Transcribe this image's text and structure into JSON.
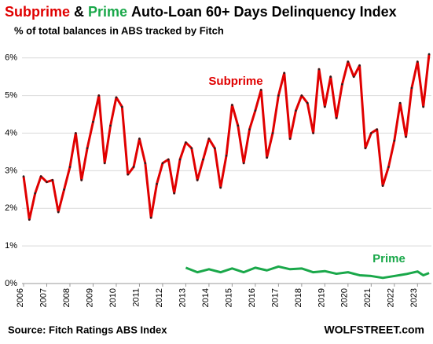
{
  "chart_data": {
    "type": "line",
    "title_parts": [
      "Subprime",
      "&",
      "Prime",
      "Auto-Loan 60+ Days Delinquency Index"
    ],
    "title_colors": [
      "#e00000",
      "#000000",
      "#1aa84a",
      "#000000"
    ],
    "subtitle": "% of total balances in ABS tracked by Fitch",
    "source": "Source: Fitch Ratings ABS Index",
    "credit": "WOLFSTREET.com",
    "annotations": [
      {
        "text": "Subprime",
        "color": "#e00000"
      },
      {
        "text": "Prime",
        "color": "#1aa84a"
      }
    ],
    "xlim": [
      2006,
      2023.6
    ],
    "xticks": [
      2006,
      2007,
      2008,
      2009,
      2010,
      2011,
      2012,
      2013,
      2014,
      2015,
      2016,
      2017,
      2018,
      2019,
      2020,
      2021,
      2022,
      2023
    ],
    "ylim": [
      0,
      6.35
    ],
    "yticks": [
      {
        "value": 0,
        "label": "0%"
      },
      {
        "value": 1,
        "label": "1%"
      },
      {
        "value": 2,
        "label": "2%"
      },
      {
        "value": 3,
        "label": "3%"
      },
      {
        "value": 4,
        "label": "4%"
      },
      {
        "value": 5,
        "label": "5%"
      },
      {
        "value": 6,
        "label": "6%"
      }
    ],
    "grid": true,
    "series": [
      {
        "name": "Subprime",
        "color": "#e00000",
        "markers": true,
        "x": [
          2006,
          2006.25,
          2006.5,
          2006.75,
          2007,
          2007.25,
          2007.5,
          2007.75,
          2008,
          2008.25,
          2008.5,
          2008.75,
          2009,
          2009.25,
          2009.5,
          2009.75,
          2010,
          2010.25,
          2010.5,
          2010.75,
          2011,
          2011.25,
          2011.5,
          2011.75,
          2012,
          2012.25,
          2012.5,
          2012.75,
          2013,
          2013.25,
          2013.5,
          2013.75,
          2014,
          2014.25,
          2014.5,
          2014.75,
          2015,
          2015.25,
          2015.5,
          2015.75,
          2016,
          2016.25,
          2016.5,
          2016.75,
          2017,
          2017.25,
          2017.5,
          2017.75,
          2018,
          2018.25,
          2018.5,
          2018.75,
          2019,
          2019.25,
          2019.5,
          2019.75,
          2020,
          2020.25,
          2020.5,
          2020.75,
          2021,
          2021.25,
          2021.5,
          2021.75,
          2022,
          2022.25,
          2022.5,
          2022.75,
          2023,
          2023.25,
          2023.5
        ],
        "values": [
          2.85,
          1.7,
          2.4,
          2.85,
          2.7,
          2.75,
          1.9,
          2.5,
          3.1,
          4.0,
          2.75,
          3.6,
          4.3,
          5.0,
          3.2,
          4.2,
          4.95,
          4.7,
          2.9,
          3.1,
          3.85,
          3.2,
          1.75,
          2.65,
          3.2,
          3.3,
          2.4,
          3.3,
          3.75,
          3.6,
          2.75,
          3.3,
          3.85,
          3.6,
          2.55,
          3.4,
          4.75,
          4.2,
          3.2,
          4.1,
          4.6,
          5.15,
          3.35,
          4.0,
          5.0,
          5.6,
          3.85,
          4.6,
          5.0,
          4.8,
          4.0,
          5.7,
          4.7,
          5.5,
          4.4,
          5.3,
          5.9,
          5.5,
          5.8,
          3.6,
          4.0,
          4.1,
          2.6,
          3.1,
          3.8,
          4.8,
          3.9,
          5.2,
          5.9,
          4.7,
          6.1
        ]
      },
      {
        "name": "Prime",
        "color": "#1aa84a",
        "markers": false,
        "x": [
          2013,
          2013.5,
          2014,
          2014.5,
          2015,
          2015.5,
          2016,
          2016.5,
          2017,
          2017.5,
          2018,
          2018.5,
          2019,
          2019.5,
          2020,
          2020.5,
          2021,
          2021.5,
          2022,
          2022.5,
          2023,
          2023.25,
          2023.5
        ],
        "values": [
          0.42,
          0.3,
          0.38,
          0.3,
          0.4,
          0.3,
          0.42,
          0.35,
          0.45,
          0.38,
          0.4,
          0.3,
          0.33,
          0.26,
          0.3,
          0.22,
          0.2,
          0.15,
          0.2,
          0.25,
          0.32,
          0.22,
          0.28
        ]
      }
    ]
  }
}
